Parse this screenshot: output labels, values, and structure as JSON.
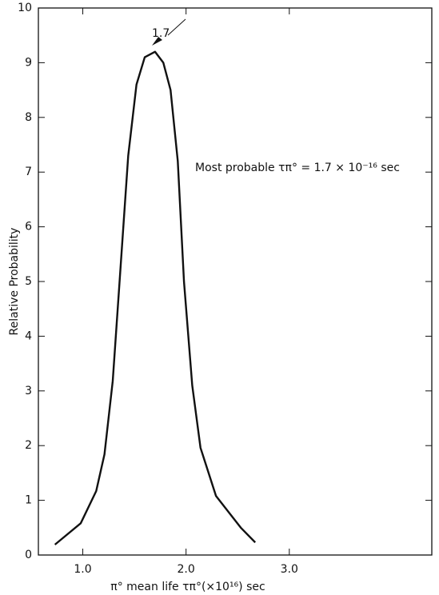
{
  "chart_data": {
    "type": "line",
    "x_label": "π° mean life τπ°(×10¹⁶) sec",
    "y_label": "Relative Probability",
    "annotations": [
      "1.7",
      "Most probable τπ° = 1.7 × 10⁻¹⁶ sec"
    ],
    "x": [
      0.73,
      0.98,
      1.13,
      1.21,
      1.29,
      1.36,
      1.44,
      1.52,
      1.6,
      1.7,
      1.78,
      1.85,
      1.92,
      1.98,
      2.06,
      2.14,
      2.29,
      2.53,
      2.67
    ],
    "series": [
      {
        "name": "Relative probability",
        "color": "#111111",
        "values": [
          0.19,
          0.58,
          1.17,
          1.84,
          3.18,
          5.1,
          7.3,
          8.6,
          9.1,
          9.2,
          9.0,
          8.5,
          7.2,
          5.0,
          3.1,
          1.96,
          1.08,
          0.5,
          0.23
        ]
      }
    ],
    "xlim": [
      0.57,
      4.38
    ],
    "ylim": [
      0,
      10
    ],
    "xticks": [
      {
        "value": 1,
        "label": "1.0"
      },
      {
        "value": 2,
        "label": "2.0"
      },
      {
        "value": 3,
        "label": "3.0"
      }
    ],
    "yticks": [
      0,
      1,
      2,
      3,
      4,
      5,
      6,
      7,
      8,
      9,
      10
    ]
  }
}
